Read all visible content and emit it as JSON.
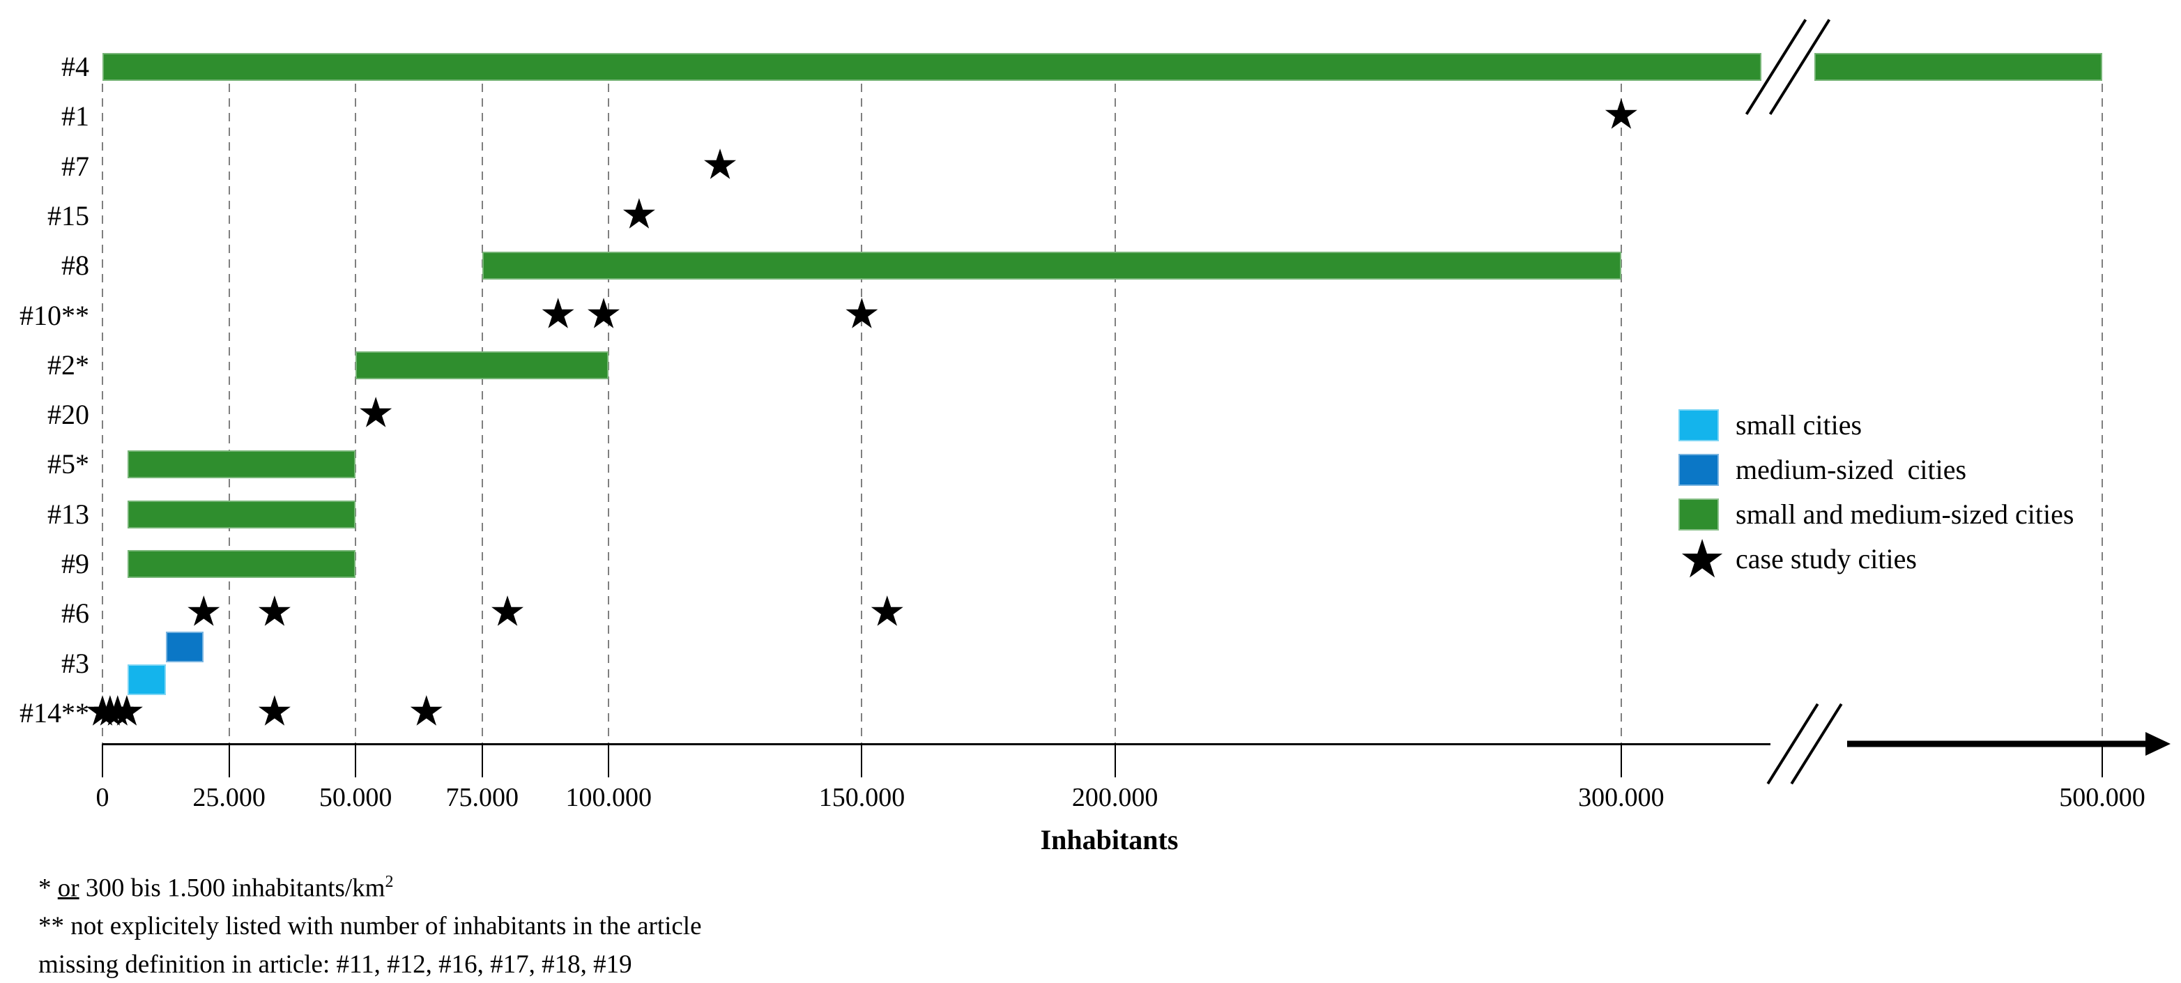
{
  "colors": {
    "small_cities": "#14b4ec",
    "medium_cities": "#0b77c6",
    "small_and_medium_cities": "#2f8e2e",
    "star": "#000000",
    "gridline": "#7f7f7f",
    "axis": "#000000"
  },
  "chart_data": {
    "type": "bar",
    "orientation": "horizontal",
    "xlabel": "Inhabitants",
    "grid": true,
    "axis_break_between": [
      300000,
      500000
    ],
    "x_ticks": [
      {
        "value": 0,
        "label": "0"
      },
      {
        "value": 25000,
        "label": "25.000"
      },
      {
        "value": 50000,
        "label": "50.000"
      },
      {
        "value": 75000,
        "label": "75.000"
      },
      {
        "value": 100000,
        "label": "100.000"
      },
      {
        "value": 150000,
        "label": "150.000"
      },
      {
        "value": 200000,
        "label": "200.000"
      },
      {
        "value": 300000,
        "label": "300.000"
      },
      {
        "value": 500000,
        "label": "500.000"
      }
    ],
    "rows": [
      {
        "id": "#4",
        "bars": [
          {
            "from": 0,
            "to": 500000,
            "type": "small_and_medium",
            "broken": true
          }
        ],
        "stars": []
      },
      {
        "id": "#1",
        "bars": [],
        "stars": [
          300000
        ]
      },
      {
        "id": "#7",
        "bars": [],
        "stars": [
          122000
        ]
      },
      {
        "id": "#15",
        "bars": [],
        "stars": [
          106000
        ]
      },
      {
        "id": "#8",
        "bars": [
          {
            "from": 75000,
            "to": 300000,
            "type": "small_and_medium"
          }
        ],
        "stars": []
      },
      {
        "id": "#10**",
        "bars": [],
        "stars": [
          90000,
          99000,
          150000
        ]
      },
      {
        "id": "#2*",
        "bars": [
          {
            "from": 50000,
            "to": 100000,
            "type": "small_and_medium"
          }
        ],
        "stars": []
      },
      {
        "id": "#20",
        "bars": [],
        "stars": [
          54000
        ]
      },
      {
        "id": "#5*",
        "bars": [
          {
            "from": 5000,
            "to": 50000,
            "type": "small_and_medium"
          }
        ],
        "stars": []
      },
      {
        "id": "#13",
        "bars": [
          {
            "from": 5000,
            "to": 50000,
            "type": "small_and_medium"
          }
        ],
        "stars": []
      },
      {
        "id": "#9",
        "bars": [
          {
            "from": 5000,
            "to": 50000,
            "type": "small_and_medium"
          }
        ],
        "stars": []
      },
      {
        "id": "#6",
        "bars": [],
        "stars": [
          20000,
          34000,
          80000,
          155000
        ]
      },
      {
        "id": "#3",
        "bars": [
          {
            "from": 5000,
            "to": 12500,
            "type": "small",
            "offset": "below"
          },
          {
            "from": 12500,
            "to": 20000,
            "type": "medium",
            "offset": "above"
          }
        ],
        "stars": []
      },
      {
        "id": "#14**",
        "bars": [],
        "stars": [
          0,
          1500,
          3000,
          4800,
          34000,
          64000
        ]
      }
    ],
    "legend": [
      {
        "swatch": "small",
        "label": "small cities"
      },
      {
        "swatch": "medium",
        "label": "medium-sized  cities"
      },
      {
        "swatch": "small_and_medium",
        "label": "small and medium-sized cities"
      },
      {
        "swatch": "star",
        "label": "case study cities"
      }
    ],
    "footnotes": {
      "line1_prefix": "* ",
      "line1_underlined": "or",
      "line1_rest": " 300 bis 1.500 inhabitants/km",
      "line1_sup": "2",
      "line2": "** not explicitely listed with number of inhabitants in the article",
      "line3": "missing definition in article: #11, #12, #16, #17, #18, #19"
    }
  }
}
